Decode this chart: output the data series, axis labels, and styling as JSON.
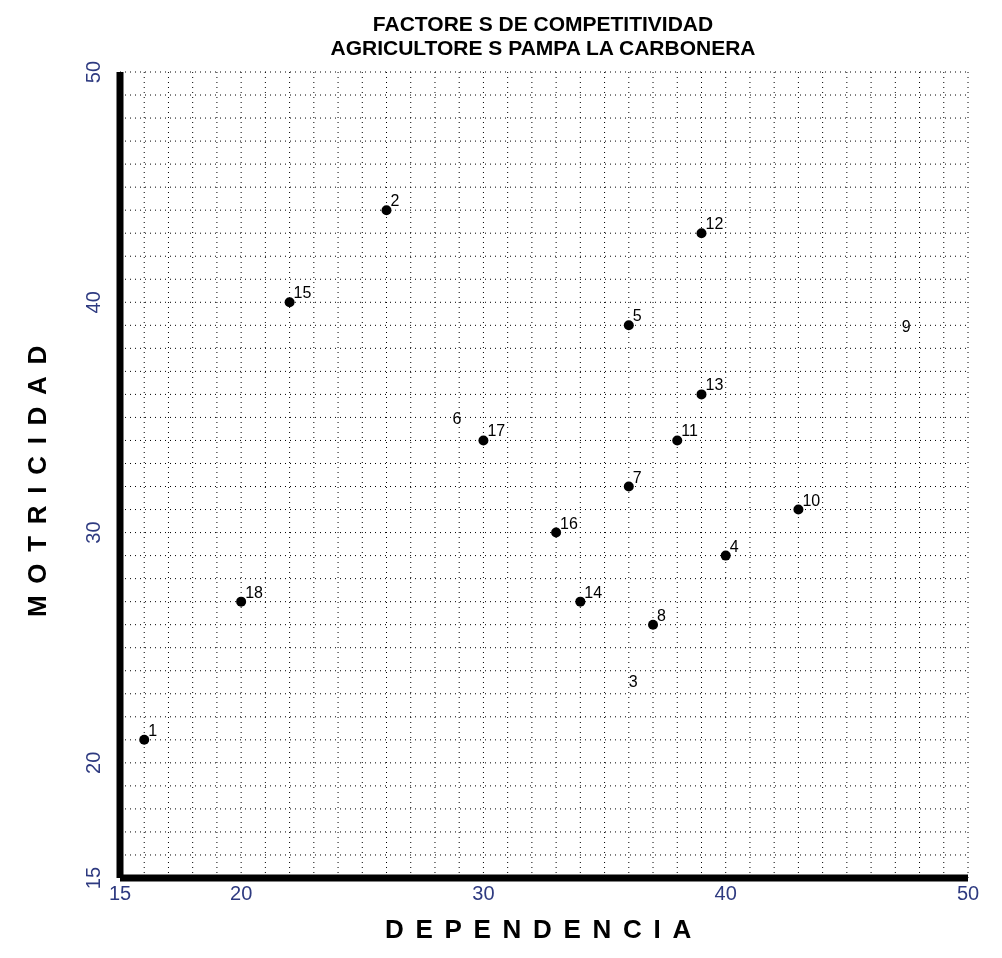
{
  "chart_data": {
    "type": "scatter",
    "title": "FACTORE S DE COMPETITIVIDAD",
    "subtitle": "AGRICULTORE S PAMPA LA CARBONERA",
    "xlabel": "DEPENDENCIA",
    "ylabel": "MOTRICIDAD",
    "series": [
      {
        "color": "#000000",
        "marker": "circle",
        "x": [
          16,
          26,
          40,
          36,
          36,
          37,
          43,
          38,
          39,
          39,
          34,
          22,
          33,
          30,
          20
        ],
        "values": [
          21,
          44,
          29,
          39,
          32,
          26,
          31,
          34,
          43,
          36,
          27,
          40,
          30,
          34,
          27
        ]
      }
    ],
    "grid": true,
    "annotations": [
      {
        "text": "1",
        "x": 16,
        "y": 21
      },
      {
        "text": "2",
        "x": 26,
        "y": 44
      },
      "3",
      {
        "text": "4",
        "x": 40,
        "y": 29
      },
      {
        "text": "5",
        "x": 36,
        "y": 39
      },
      "6",
      {
        "text": "7",
        "x": 36,
        "y": 32
      },
      {
        "text": "8",
        "x": 37,
        "y": 26
      },
      "9",
      {
        "text": "10",
        "x": 43,
        "y": 31
      },
      {
        "text": "11",
        "x": 38,
        "y": 34
      },
      {
        "text": "12",
        "x": 39,
        "y": 43
      },
      {
        "text": "13",
        "x": 39,
        "y": 36
      },
      {
        "text": "14",
        "x": 34,
        "y": 27
      },
      {
        "text": "15",
        "x": 22,
        "y": 40
      },
      {
        "text": "16",
        "x": 33,
        "y": 30
      },
      {
        "text": "17",
        "x": 30,
        "y": 34
      },
      {
        "text": "18",
        "x": 20,
        "y": 27
      }
    ],
    "xlim": [
      15,
      50
    ],
    "ylim": [
      15,
      50
    ],
    "xticks": [
      15,
      {
        "value": 16,
        "label": null
      },
      {
        "value": 17,
        "label": null
      },
      {
        "value": 18,
        "label": null
      },
      {
        "value": 19,
        "label": null
      },
      20,
      {
        "value": 21,
        "label": null
      },
      {
        "value": 22,
        "label": null
      },
      {
        "value": 23,
        "label": null
      },
      {
        "value": 24,
        "label": null
      },
      {
        "value": 25,
        "label": null
      },
      {
        "value": 26,
        "label": null
      },
      {
        "value": 27,
        "label": null
      },
      {
        "value": 28,
        "label": null
      },
      {
        "value": 29,
        "label": null
      },
      30,
      {
        "value": 31,
        "label": null
      },
      {
        "value": 32,
        "label": null
      },
      {
        "value": 33,
        "label": null
      },
      {
        "value": 34,
        "label": null
      },
      {
        "value": 35,
        "label": null
      },
      {
        "value": 36,
        "label": null
      },
      {
        "value": 37,
        "label": null
      },
      {
        "value": 38,
        "label": null
      },
      {
        "value": 39,
        "label": null
      },
      40,
      {
        "value": 41,
        "label": null
      },
      {
        "value": 42,
        "label": null
      },
      {
        "value": 43,
        "label": null
      },
      {
        "value": 44,
        "label": null
      },
      {
        "value": 45,
        "label": null
      },
      {
        "value": 46,
        "label": null
      },
      {
        "value": 47,
        "label": null
      },
      {
        "value": 48,
        "label": null
      },
      {
        "value": 49,
        "label": null
      },
      50
    ],
    "yticks": [
      15,
      {
        "value": 16,
        "label": null
      },
      {
        "value": 17,
        "label": null
      },
      {
        "value": 18,
        "label": null
      },
      {
        "value": 19,
        "label": null
      },
      20,
      {
        "value": 21,
        "label": null
      },
      {
        "value": 22,
        "label": null
      },
      {
        "value": 23,
        "label": null
      },
      {
        "value": 24,
        "label": null
      },
      {
        "value": 25,
        "label": null
      },
      {
        "value": 26,
        "label": null
      },
      {
        "value": 27,
        "label": null
      },
      {
        "value": 28,
        "label": null
      },
      {
        "value": 29,
        "label": null
      },
      30,
      {
        "value": 31,
        "label": null
      },
      {
        "value": 32,
        "label": null
      },
      {
        "value": 33,
        "label": null
      },
      {
        "value": 34,
        "label": null
      },
      {
        "value": 35,
        "label": null
      },
      {
        "value": 36,
        "label": null
      },
      {
        "value": 37,
        "label": null
      },
      {
        "value": 38,
        "label": null
      },
      {
        "value": 39,
        "label": null
      },
      40,
      {
        "value": 41,
        "label": null
      },
      {
        "value": 42,
        "label": null
      },
      {
        "value": 43,
        "label": null
      },
      {
        "value": 44,
        "label": null
      },
      {
        "value": 45,
        "label": null
      },
      {
        "value": 46,
        "label": null
      },
      {
        "value": 47,
        "label": null
      },
      {
        "value": 48,
        "label": null
      },
      {
        "value": 49,
        "label": null
      },
      50
    ]
  }
}
